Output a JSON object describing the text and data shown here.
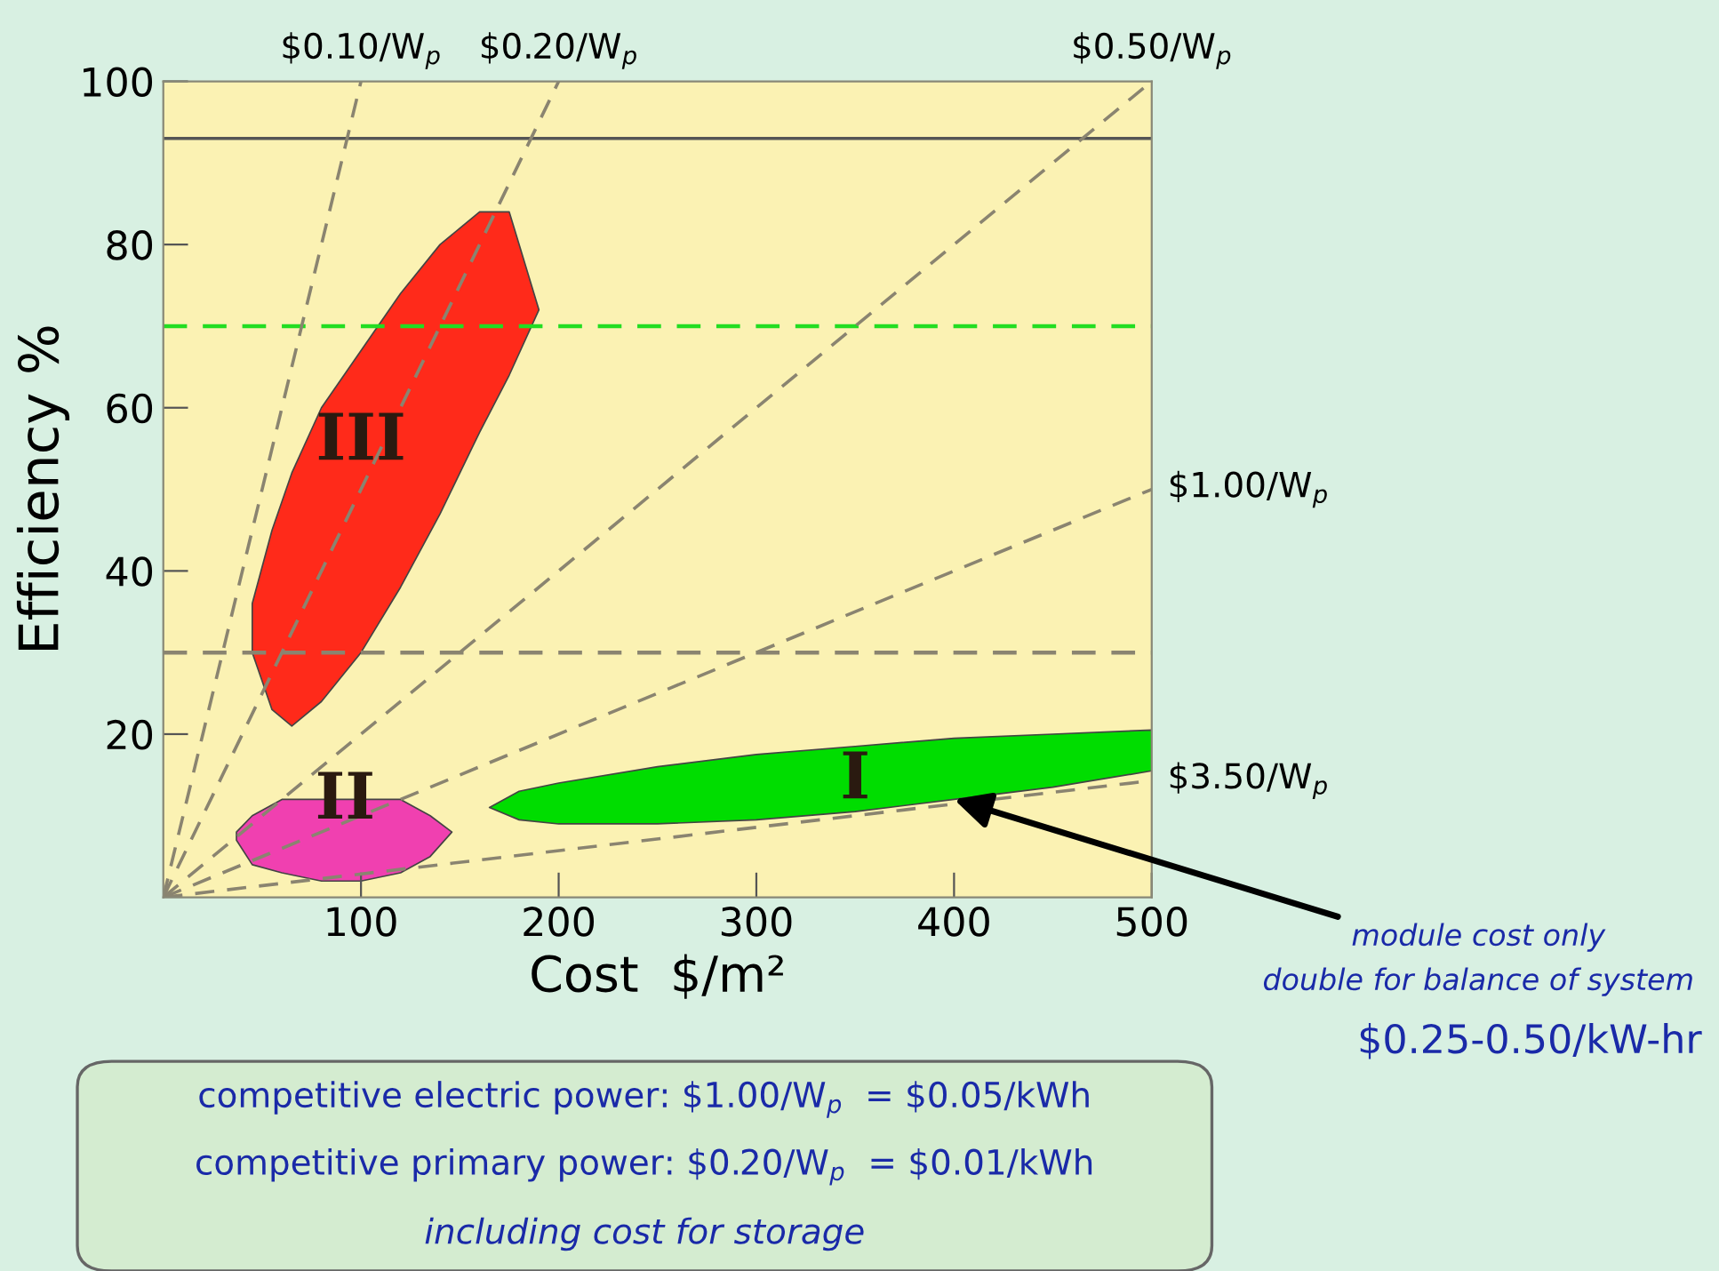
{
  "chart_data": {
    "type": "line",
    "xlabel": "Cost  $/m²",
    "ylabel": "Efficiency %",
    "xlim": [
      0,
      500
    ],
    "ylim": [
      0,
      100
    ],
    "xticks": [
      100,
      200,
      300,
      400,
      500
    ],
    "yticks": [
      20,
      40,
      60,
      80,
      100
    ],
    "grid": false,
    "line_style": "dashed",
    "marker": "none",
    "series": [
      {
        "name": "$0.10/W$_{p}$",
        "color": "#8a8470",
        "x": [
          0,
          100
        ],
        "values": [
          0,
          100
        ]
      },
      {
        "name": "$0.20/W$_{p}$",
        "color": "#8a8470",
        "x": [
          0,
          200
        ],
        "values": [
          0,
          100
        ]
      },
      {
        "name": "$0.50/W$_{p}$",
        "color": "#8a8470",
        "x": [
          0,
          500
        ],
        "values": [
          0,
          100
        ]
      },
      {
        "name": "$1.00/W$_{p}$",
        "color": "#8a8470",
        "x": [
          0,
          500
        ],
        "values": [
          0,
          50
        ]
      },
      {
        "name": "$3.50/W$_{p}$",
        "color": "#8a8470",
        "x": [
          0,
          500
        ],
        "values": [
          0,
          14.3
        ]
      },
      {
        "type": "area",
        "color": "#ff2a1a",
        "x": [
          45,
          55,
          65,
          80,
          100,
          120,
          140,
          160,
          175,
          190,
          175,
          160,
          140,
          120,
          100,
          80,
          65,
          55,
          45
        ],
        "values": [
          30,
          23,
          21,
          24,
          30,
          38,
          47,
          57,
          64,
          72,
          84,
          84,
          80,
          74,
          67,
          60,
          52,
          45,
          36
        ]
      },
      {
        "type": "area",
        "color": "#f040b0",
        "x": [
          37,
          45,
          60,
          80,
          100,
          120,
          135,
          146,
          135,
          120,
          100,
          80,
          60,
          45,
          37
        ],
        "values": [
          7,
          4,
          3,
          2,
          2,
          3,
          5,
          8,
          10,
          12,
          12,
          12,
          12,
          10,
          8
        ]
      },
      {
        "type": "area",
        "color": "#00dd00",
        "x": [
          165,
          180,
          200,
          250,
          300,
          350,
          400,
          450,
          500,
          500,
          450,
          400,
          350,
          300,
          250,
          200,
          180,
          165
        ],
        "values": [
          11,
          9.5,
          9,
          9,
          9.5,
          10.5,
          12,
          13.5,
          15.5,
          20.5,
          20,
          19.5,
          18.5,
          17.5,
          16,
          14,
          13,
          11
        ]
      }
    ],
    "ref_lines": [
      {
        "axis": "y",
        "value": 93,
        "color": "#555555",
        "line_style": "solid"
      },
      {
        "axis": "y",
        "value": 30,
        "color": "#8a8470",
        "line_style": "dashed"
      },
      {
        "axis": "y",
        "value": 70,
        "color": "#22dd22",
        "line_style": "dashed"
      }
    ],
    "annotations": [
      {
        "text": "III",
        "x": 100,
        "y": 52
      },
      {
        "text": "II",
        "x": 92,
        "y": 8
      },
      {
        "text": "I",
        "x": 350,
        "y": 10.5
      },
      {
        "text": "module cost only\ndouble for balance of system",
        "x": 400,
        "y": 12
      },
      "$0.25-0.50/kW-hr",
      "competitive electric power: $1.00/W$_{p}$  = $0.05/kWh",
      "competitive primary power: $0.20/W$_{p}$  = $0.01/kWh",
      "including cost for storage"
    ]
  }
}
